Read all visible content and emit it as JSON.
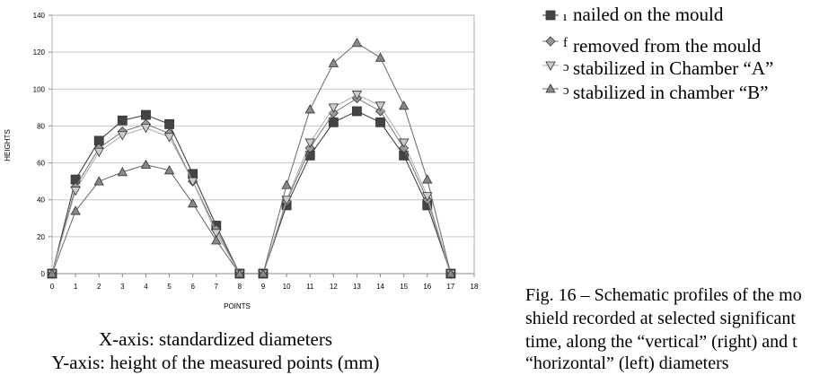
{
  "chart_data": {
    "type": "line",
    "xlabel": "POINTS",
    "ylabel": "HEIGHTS",
    "xlim": [
      0,
      18
    ],
    "ylim": [
      0,
      140
    ],
    "x_ticks": [
      0,
      1,
      2,
      3,
      4,
      5,
      6,
      7,
      8,
      9,
      10,
      11,
      12,
      13,
      14,
      15,
      16,
      17,
      18
    ],
    "y_ticks": [
      0,
      20,
      40,
      60,
      80,
      100,
      120,
      140
    ],
    "grid": "horizontal",
    "legend_position": "right",
    "x": [
      0,
      1,
      2,
      3,
      4,
      5,
      6,
      7,
      8,
      9,
      10,
      11,
      12,
      13,
      14,
      15,
      16,
      17
    ],
    "series": [
      {
        "name": "nailed on the mould",
        "marker": "square",
        "color": "#444444",
        "values": [
          0,
          51,
          72,
          83,
          86,
          81,
          54,
          26,
          0,
          0,
          37,
          64,
          82,
          88,
          82,
          64,
          37,
          0
        ]
      },
      {
        "name": "removed from the mould",
        "marker": "diamond",
        "color": "#888888",
        "values": [
          0,
          47,
          68,
          77,
          81,
          76,
          50,
          24,
          0,
          0,
          39,
          68,
          87,
          95,
          88,
          68,
          40,
          0
        ]
      },
      {
        "name": "stabilized in Chamber “A”",
        "marker": "triangle-down",
        "color": "#bbbbbb",
        "values": [
          0,
          45,
          66,
          75,
          79,
          74,
          50,
          22,
          0,
          0,
          40,
          71,
          90,
          97,
          91,
          71,
          42,
          0
        ]
      },
      {
        "name": "stabilized in chamber “B”",
        "marker": "triangle-up",
        "color": "#777777",
        "values": [
          0,
          34,
          50,
          55,
          59,
          56,
          38,
          18,
          0,
          0,
          48,
          89,
          114,
          125,
          117,
          91,
          51,
          0
        ]
      }
    ]
  },
  "legend_stub_labels": [
    "ı",
    "f",
    "ɔ",
    "ɔ"
  ],
  "axis_notes": {
    "x": "X-axis: standardized diameters",
    "y": "Y-axis: height of the measured points (mm)"
  },
  "caption": {
    "line1": "Fig. 16 – Schematic profiles of the mo",
    "line2": "shield recorded at selected significant",
    "line3": "time, along the “vertical” (right) and t",
    "line4": "“horizontal” (left) diameters"
  }
}
